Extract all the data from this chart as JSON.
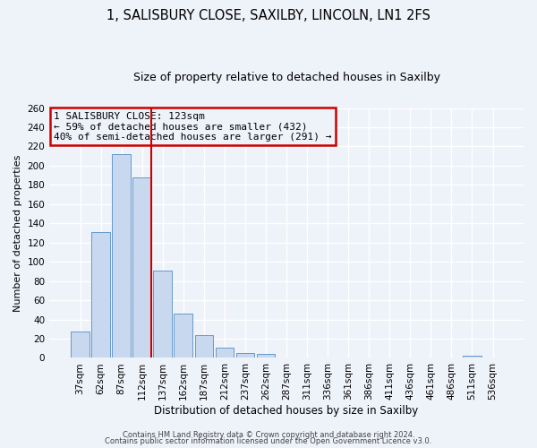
{
  "title": "1, SALISBURY CLOSE, SAXILBY, LINCOLN, LN1 2FS",
  "subtitle": "Size of property relative to detached houses in Saxilby",
  "xlabel": "Distribution of detached houses by size in Saxilby",
  "ylabel": "Number of detached properties",
  "bar_labels": [
    "37sqm",
    "62sqm",
    "87sqm",
    "112sqm",
    "137sqm",
    "162sqm",
    "187sqm",
    "212sqm",
    "237sqm",
    "262sqm",
    "287sqm",
    "311sqm",
    "336sqm",
    "361sqm",
    "386sqm",
    "411sqm",
    "436sqm",
    "461sqm",
    "486sqm",
    "511sqm",
    "536sqm"
  ],
  "bar_values": [
    27,
    131,
    212,
    188,
    91,
    46,
    24,
    11,
    5,
    4,
    0,
    0,
    0,
    0,
    0,
    0,
    0,
    0,
    0,
    2,
    0
  ],
  "bar_color": "#c8d9ef",
  "bar_edge_color": "#6699cc",
  "vline_color": "#cc0000",
  "vline_x": 3.44,
  "annotation_title": "1 SALISBURY CLOSE: 123sqm",
  "annotation_line1": "← 59% of detached houses are smaller (432)",
  "annotation_line2": "40% of semi-detached houses are larger (291) →",
  "annotation_box_color": "#cc0000",
  "ylim": [
    0,
    260
  ],
  "yticks": [
    0,
    20,
    40,
    60,
    80,
    100,
    120,
    140,
    160,
    180,
    200,
    220,
    240,
    260
  ],
  "footer1": "Contains HM Land Registry data © Crown copyright and database right 2024.",
  "footer2": "Contains public sector information licensed under the Open Government Licence v3.0.",
  "background_color": "#eef2f9",
  "grid_color": "#ffffff",
  "title_fontsize": 10.5,
  "subtitle_fontsize": 9,
  "ylabel_fontsize": 8,
  "xlabel_fontsize": 8.5,
  "tick_fontsize": 7.5,
  "footer_fontsize": 6
}
